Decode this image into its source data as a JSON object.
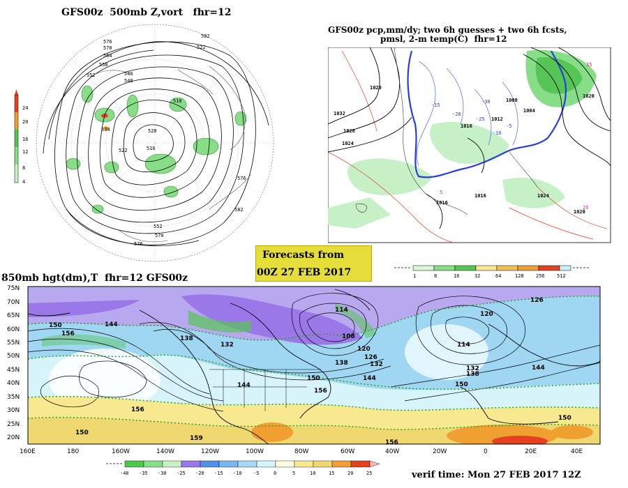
{
  "panel1": {
    "title": "GFS00z  500mb Z,vort   fhr=12",
    "colorbar_labels": [
      "24",
      "20",
      "16",
      "12",
      "8",
      "4"
    ],
    "contour_labels": [
      "582",
      "576",
      "570",
      "564",
      "558",
      "552",
      "546",
      "540",
      "534",
      "528",
      "522",
      "516",
      "510",
      "522",
      "576",
      "582",
      "576",
      "570",
      "552"
    ]
  },
  "panel2": {
    "title_line1": "GFS00z pcp,mm/dy; two 6h guesses + two 6h fcsts,",
    "title_line2": "pmsl, 2-m temp(C)  fhr=12",
    "colorbar_labels": [
      "1",
      "8",
      "16",
      "32",
      "64",
      "128",
      "256",
      "512"
    ],
    "pressure_labels": [
      "1032",
      "1028",
      "1024",
      "1020",
      "1016",
      "1012",
      "1016",
      "1008",
      "1004",
      "1020",
      "1016",
      "1024",
      "1020"
    ],
    "temp_labels": [
      "-15",
      "-20",
      "-25",
      "-30",
      "-10",
      "-5",
      "5",
      "15",
      "25"
    ]
  },
  "panel3": {
    "title": "850mb hgt(dm),T  fhr=12 GFS00z",
    "lat_labels": [
      "75N",
      "70N",
      "65N",
      "60N",
      "55N",
      "50N",
      "45N",
      "40N",
      "35N",
      "30N",
      "25N",
      "20N"
    ],
    "lon_labels": [
      "160E",
      "180",
      "160W",
      "140W",
      "120W",
      "100W",
      "80W",
      "60W",
      "40W",
      "20W",
      "0",
      "20E",
      "40E"
    ],
    "colorbar_labels": [
      "-40",
      "-35",
      "-30",
      "-25",
      "-20",
      "-15",
      "-10",
      "-5",
      "0",
      "5",
      "10",
      "15",
      "20",
      "25"
    ],
    "height_labels": [
      "150",
      "156",
      "144",
      "138",
      "132",
      "144",
      "150",
      "156",
      "114",
      "108",
      "120",
      "126",
      "132",
      "138",
      "144",
      "120",
      "126",
      "114",
      "132",
      "138",
      "150",
      "144",
      "156",
      "150",
      "159",
      "156",
      "150"
    ]
  },
  "forecast_box": {
    "line1": "Forecasts from",
    "line2": "00Z 27 FEB 2017"
  },
  "verif_time": "verif time: Mon 27 FEB 2017 12Z",
  "colors": {
    "vort_green": "#55c655",
    "temp_purple": "#9a78e8",
    "ocean_blue": "#9fd6f2",
    "land_tan": "#f0d870",
    "warm_orange": "#f0a030",
    "hot_red": "#e64020"
  }
}
